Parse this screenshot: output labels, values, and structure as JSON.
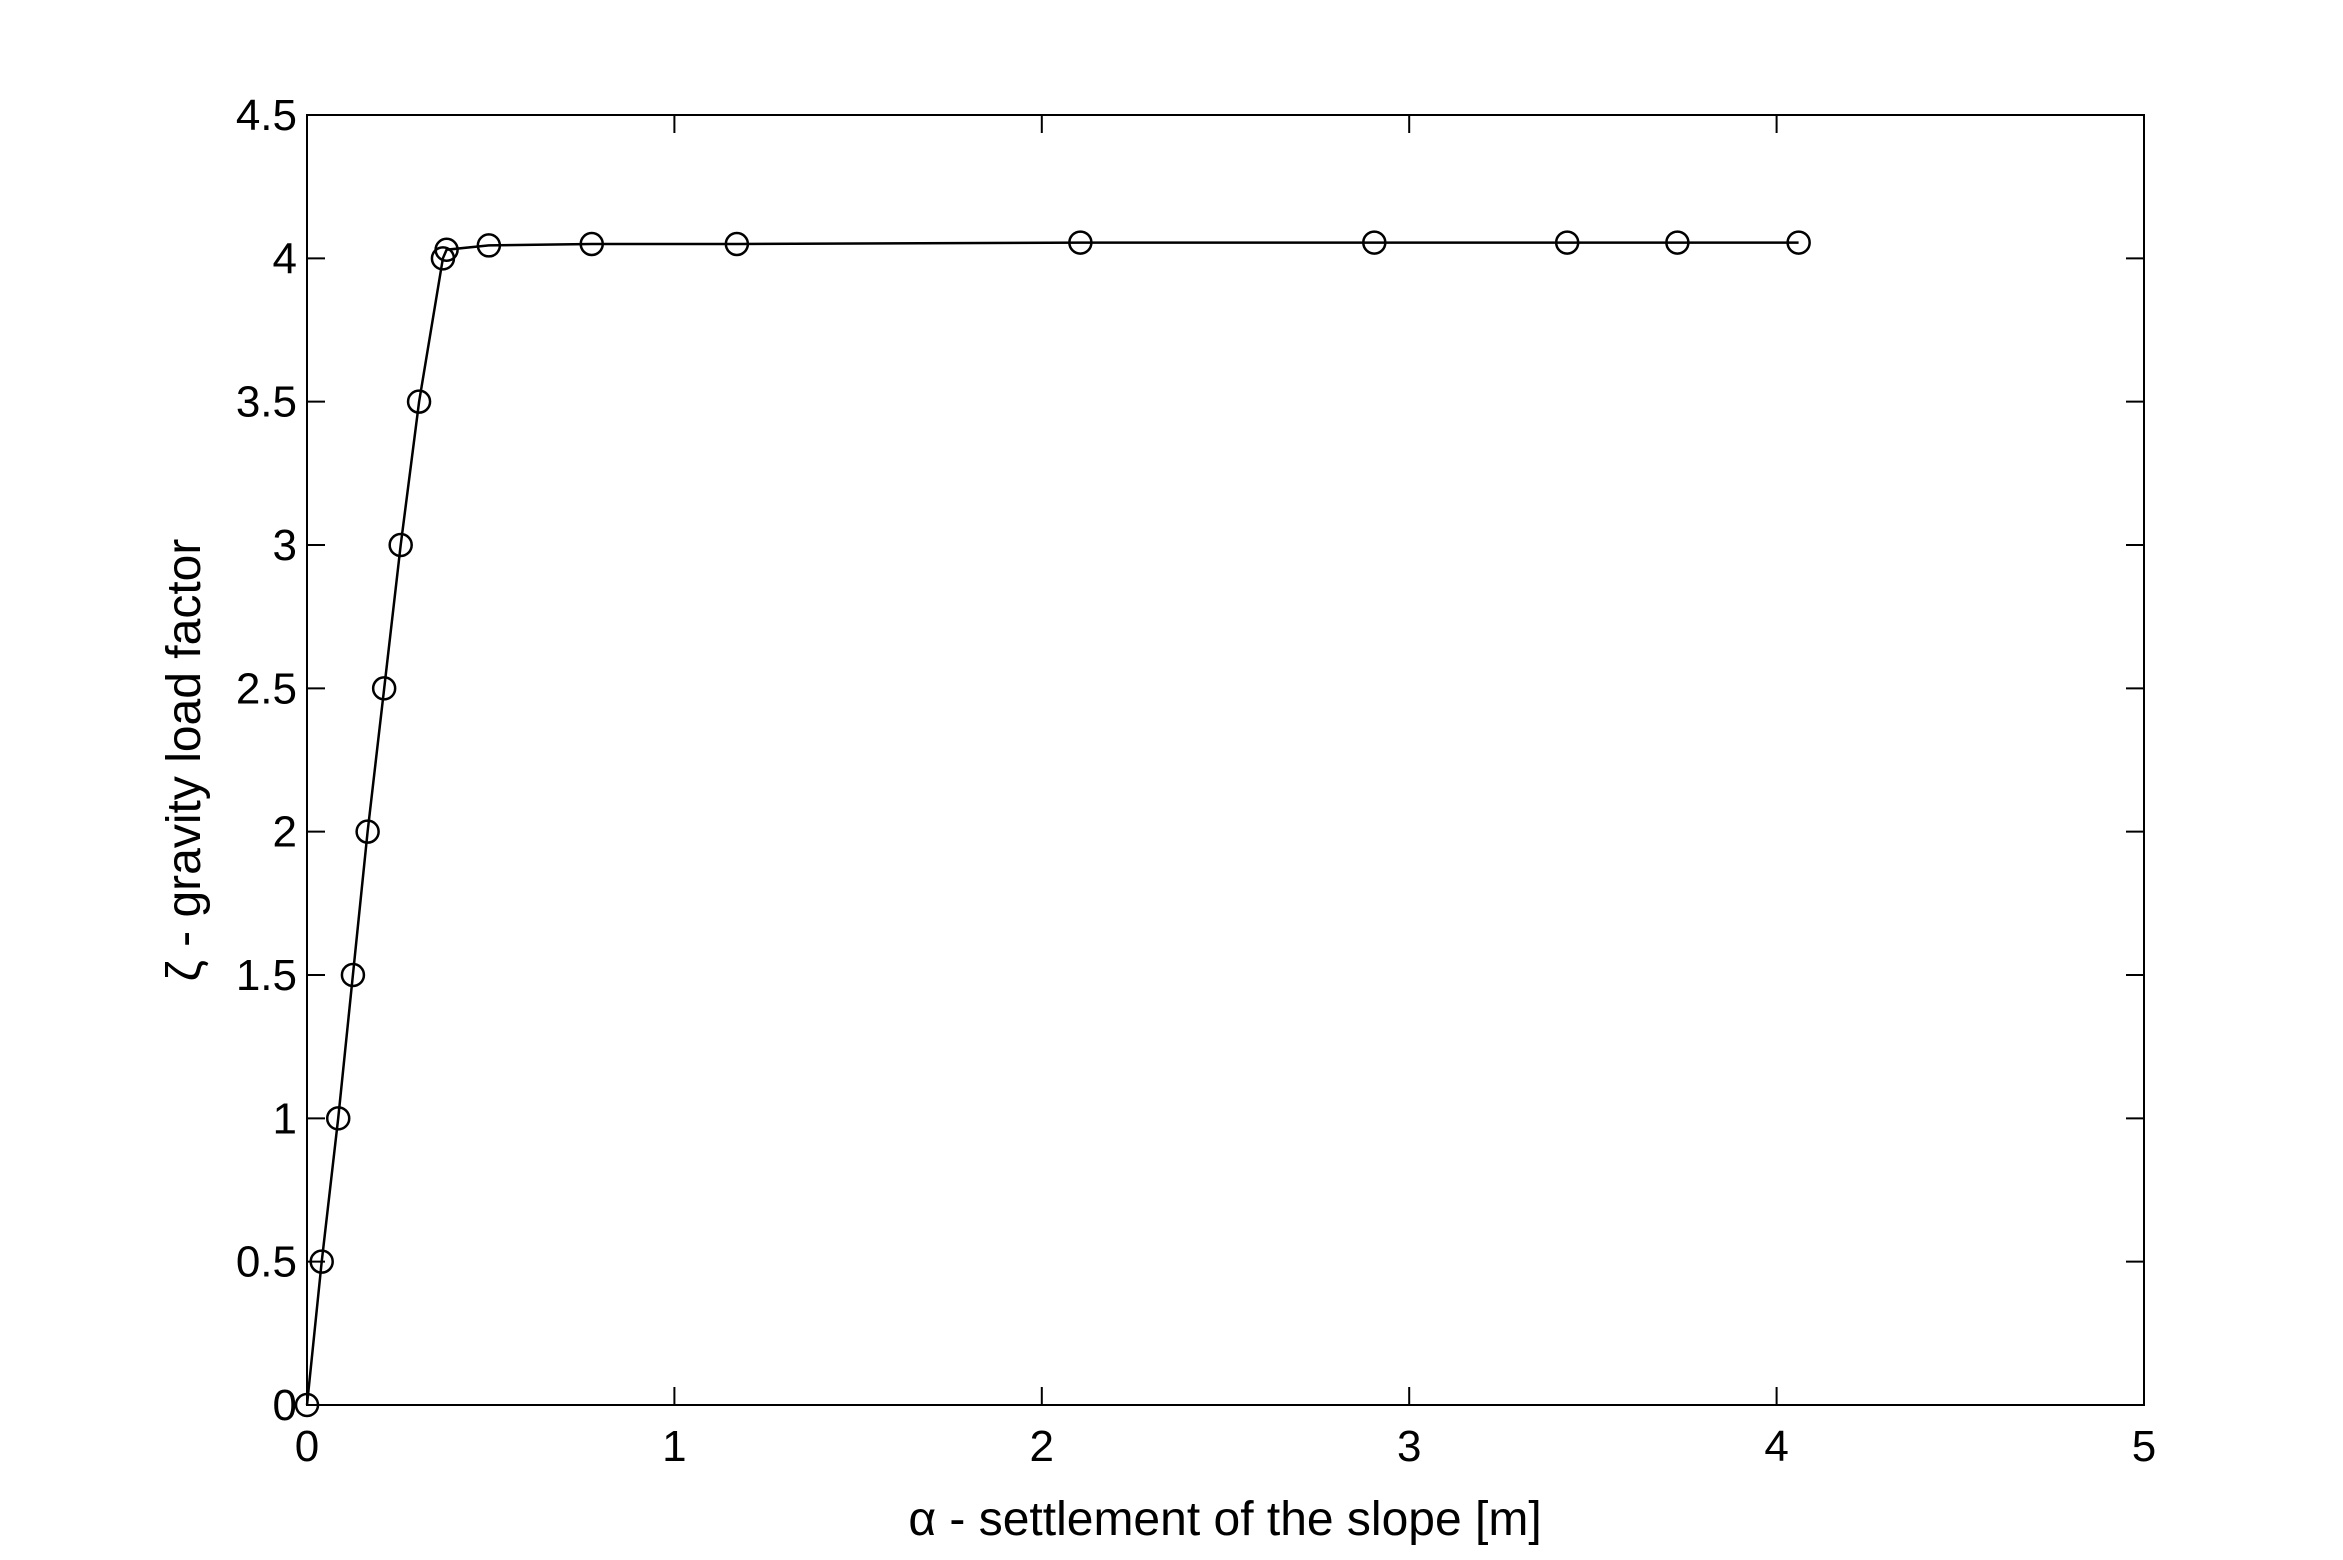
{
  "chart_data": {
    "type": "line",
    "title": "",
    "xlabel": "α - settlement of the slope [m]",
    "ylabel": "ζ - gravity load factor",
    "xlim": [
      0,
      5
    ],
    "ylim": [
      0,
      4.5
    ],
    "xticks": [
      "0",
      "1",
      "2",
      "3",
      "4",
      "5"
    ],
    "yticks": [
      "0",
      "0.5",
      "1",
      "1.5",
      "2",
      "2.5",
      "3",
      "3.5",
      "4",
      "4.5"
    ],
    "grid": false,
    "legend": "none",
    "marker": "circle-open",
    "line_color": "#000000",
    "series": [
      {
        "x": [
          0,
          0.04,
          0.085,
          0.125,
          0.165,
          0.21,
          0.255,
          0.305,
          0.37,
          0.38,
          0.495,
          0.775,
          1.17,
          2.105,
          2.905,
          3.43,
          3.73,
          4.06
        ],
        "y": [
          0,
          0.5,
          1.0,
          1.5,
          2.0,
          2.5,
          3.0,
          3.5,
          4.0,
          4.03,
          4.045,
          4.05,
          4.05,
          4.055,
          4.055,
          4.055,
          4.055,
          4.055
        ]
      }
    ]
  }
}
